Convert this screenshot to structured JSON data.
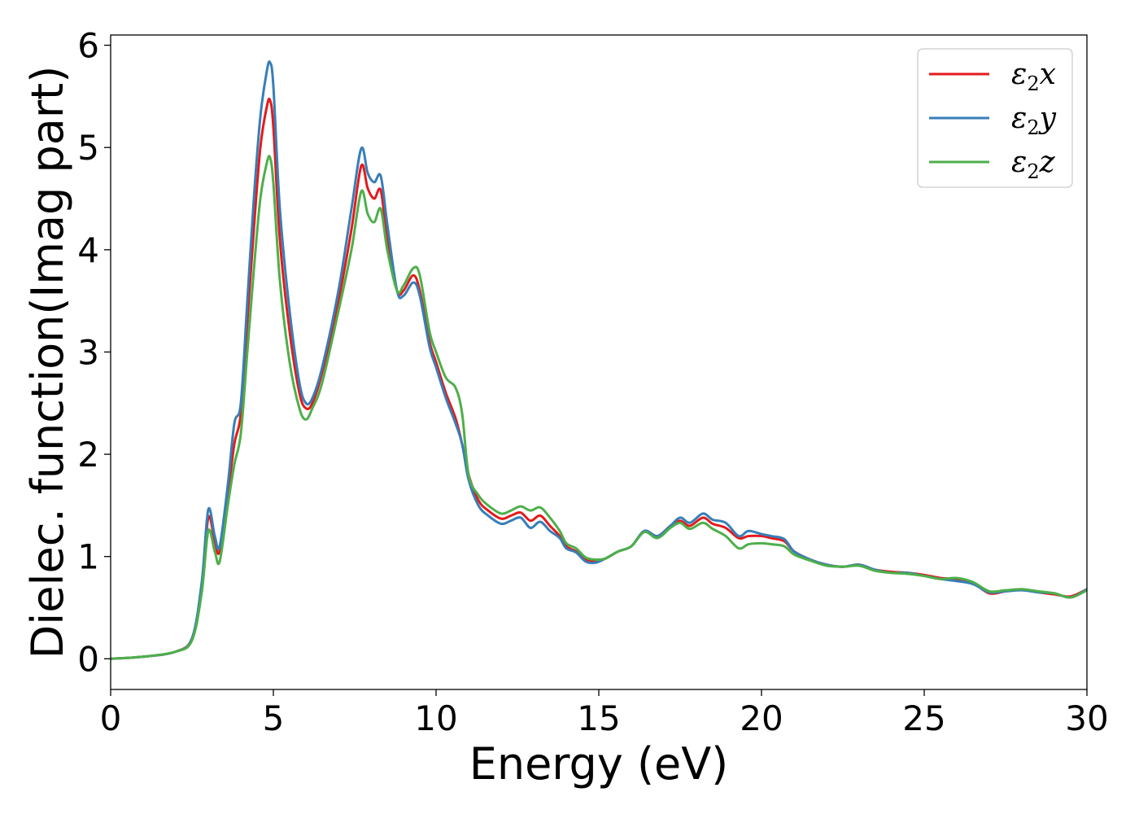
{
  "chart_data": {
    "type": "line",
    "xlabel": "Energy (eV)",
    "ylabel": "Dielec. function(Imag part)",
    "xlim": [
      0,
      30
    ],
    "ylim": [
      -0.3,
      6.1
    ],
    "xticks": [
      "0",
      "5",
      "10",
      "15",
      "20",
      "25",
      "30"
    ],
    "yticks": [
      "0",
      "1",
      "2",
      "3",
      "4",
      "5",
      "6"
    ],
    "grid": false,
    "legend_position": "top-right",
    "series": [
      {
        "name": "ε2x",
        "name_parts": [
          "ε",
          "2",
          "x"
        ],
        "color": "#e41a1c",
        "x": [
          0,
          1,
          2,
          2.5,
          2.8,
          3.0,
          3.2,
          3.35,
          3.6,
          3.8,
          4.0,
          4.2,
          4.4,
          4.6,
          4.8,
          4.9,
          5.0,
          5.2,
          5.5,
          5.8,
          6.0,
          6.2,
          6.5,
          7.0,
          7.4,
          7.7,
          7.9,
          8.1,
          8.3,
          8.5,
          8.8,
          9.0,
          9.3,
          9.5,
          9.8,
          10.0,
          10.3,
          10.6,
          10.8,
          11.0,
          11.3,
          11.6,
          12.0,
          12.3,
          12.6,
          12.9,
          13.2,
          13.5,
          13.8,
          14.0,
          14.3,
          14.6,
          14.9,
          15.2,
          15.6,
          16.0,
          16.4,
          16.8,
          17.2,
          17.5,
          17.8,
          18.2,
          18.5,
          18.9,
          19.3,
          19.6,
          20.0,
          20.3,
          20.7,
          21.0,
          21.5,
          22.0,
          22.5,
          23.0,
          23.5,
          24.0,
          24.5,
          25.0,
          25.5,
          26.0,
          26.5,
          27.0,
          27.5,
          28.0,
          28.5,
          29.0,
          29.5,
          30.0
        ],
        "y": [
          0.0,
          0.02,
          0.07,
          0.2,
          0.7,
          1.38,
          1.15,
          1.05,
          1.6,
          2.1,
          2.4,
          3.3,
          4.2,
          5.0,
          5.4,
          5.46,
          5.2,
          4.1,
          3.2,
          2.6,
          2.45,
          2.5,
          2.8,
          3.5,
          4.2,
          4.82,
          4.6,
          4.5,
          4.58,
          4.1,
          3.6,
          3.6,
          3.75,
          3.6,
          3.1,
          2.9,
          2.6,
          2.35,
          2.1,
          1.8,
          1.55,
          1.45,
          1.37,
          1.4,
          1.43,
          1.35,
          1.4,
          1.3,
          1.2,
          1.1,
          1.05,
          0.97,
          0.95,
          0.98,
          1.05,
          1.1,
          1.25,
          1.2,
          1.3,
          1.35,
          1.3,
          1.38,
          1.32,
          1.28,
          1.18,
          1.2,
          1.2,
          1.18,
          1.15,
          1.05,
          0.97,
          0.92,
          0.9,
          0.92,
          0.87,
          0.85,
          0.84,
          0.82,
          0.79,
          0.78,
          0.74,
          0.64,
          0.66,
          0.68,
          0.65,
          0.63,
          0.61,
          0.68
        ]
      },
      {
        "name": "ε2y",
        "name_parts": [
          "ε",
          "2",
          "y"
        ],
        "color": "#377eb8",
        "x": [
          0,
          1,
          2,
          2.5,
          2.8,
          3.0,
          3.2,
          3.35,
          3.6,
          3.8,
          4.0,
          4.2,
          4.4,
          4.6,
          4.8,
          4.9,
          5.0,
          5.2,
          5.5,
          5.8,
          6.0,
          6.2,
          6.5,
          7.0,
          7.4,
          7.7,
          7.9,
          8.1,
          8.3,
          8.5,
          8.8,
          9.0,
          9.3,
          9.5,
          9.8,
          10.0,
          10.3,
          10.6,
          10.8,
          11.0,
          11.3,
          11.6,
          12.0,
          12.3,
          12.6,
          12.9,
          13.2,
          13.5,
          13.8,
          14.0,
          14.3,
          14.6,
          14.9,
          15.2,
          15.6,
          16.0,
          16.4,
          16.8,
          17.2,
          17.5,
          17.8,
          18.2,
          18.5,
          18.9,
          19.3,
          19.6,
          20.0,
          20.3,
          20.7,
          21.0,
          21.5,
          22.0,
          22.5,
          23.0,
          23.5,
          24.0,
          24.5,
          25.0,
          25.5,
          26.0,
          26.5,
          27.0,
          27.5,
          28.0,
          28.5,
          29.0,
          29.5,
          30.0
        ],
        "y": [
          0.0,
          0.02,
          0.07,
          0.2,
          0.75,
          1.46,
          1.2,
          1.1,
          1.7,
          2.3,
          2.5,
          3.5,
          4.5,
          5.3,
          5.75,
          5.83,
          5.6,
          4.4,
          3.4,
          2.7,
          2.5,
          2.55,
          2.85,
          3.6,
          4.4,
          4.99,
          4.75,
          4.66,
          4.72,
          4.25,
          3.6,
          3.55,
          3.68,
          3.55,
          3.05,
          2.85,
          2.55,
          2.3,
          2.1,
          1.75,
          1.5,
          1.4,
          1.32,
          1.35,
          1.38,
          1.28,
          1.34,
          1.25,
          1.18,
          1.08,
          1.04,
          0.95,
          0.94,
          0.98,
          1.05,
          1.1,
          1.25,
          1.2,
          1.3,
          1.38,
          1.33,
          1.42,
          1.36,
          1.33,
          1.2,
          1.25,
          1.22,
          1.2,
          1.17,
          1.05,
          0.97,
          0.92,
          0.9,
          0.92,
          0.87,
          0.84,
          0.84,
          0.81,
          0.78,
          0.76,
          0.73,
          0.65,
          0.66,
          0.67,
          0.65,
          0.64,
          0.6,
          0.68
        ]
      },
      {
        "name": "ε2z",
        "name_parts": [
          "ε",
          "2",
          "z"
        ],
        "color": "#4daf4a",
        "x": [
          0,
          1,
          2,
          2.5,
          2.8,
          3.0,
          3.2,
          3.35,
          3.6,
          3.8,
          4.0,
          4.2,
          4.4,
          4.6,
          4.8,
          4.9,
          5.0,
          5.2,
          5.5,
          5.8,
          6.0,
          6.2,
          6.5,
          7.0,
          7.4,
          7.7,
          7.9,
          8.1,
          8.3,
          8.5,
          8.8,
          9.0,
          9.3,
          9.5,
          9.8,
          10.0,
          10.3,
          10.6,
          10.8,
          11.0,
          11.3,
          11.6,
          12.0,
          12.3,
          12.6,
          12.9,
          13.2,
          13.5,
          13.8,
          14.0,
          14.3,
          14.6,
          14.9,
          15.2,
          15.6,
          16.0,
          16.4,
          16.8,
          17.2,
          17.5,
          17.8,
          18.2,
          18.5,
          18.9,
          19.3,
          19.6,
          20.0,
          20.3,
          20.7,
          21.0,
          21.5,
          22.0,
          22.5,
          23.0,
          23.5,
          24.0,
          24.5,
          25.0,
          25.5,
          26.0,
          26.5,
          27.0,
          27.5,
          28.0,
          28.5,
          29.0,
          29.5,
          30.0
        ],
        "y": [
          0.0,
          0.02,
          0.07,
          0.18,
          0.65,
          1.25,
          1.05,
          0.95,
          1.5,
          1.9,
          2.2,
          3.0,
          3.8,
          4.5,
          4.85,
          4.9,
          4.65,
          3.7,
          2.9,
          2.45,
          2.34,
          2.45,
          2.7,
          3.4,
          4.0,
          4.57,
          4.35,
          4.27,
          4.4,
          4.0,
          3.6,
          3.65,
          3.82,
          3.75,
          3.2,
          3.0,
          2.75,
          2.65,
          2.4,
          1.8,
          1.6,
          1.5,
          1.42,
          1.45,
          1.49,
          1.45,
          1.48,
          1.38,
          1.25,
          1.13,
          1.08,
          0.99,
          0.97,
          0.98,
          1.05,
          1.1,
          1.24,
          1.18,
          1.28,
          1.33,
          1.27,
          1.33,
          1.27,
          1.2,
          1.08,
          1.12,
          1.13,
          1.12,
          1.1,
          1.02,
          0.96,
          0.91,
          0.9,
          0.91,
          0.86,
          0.84,
          0.83,
          0.81,
          0.78,
          0.79,
          0.75,
          0.66,
          0.67,
          0.68,
          0.66,
          0.64,
          0.6,
          0.67
        ]
      }
    ]
  }
}
